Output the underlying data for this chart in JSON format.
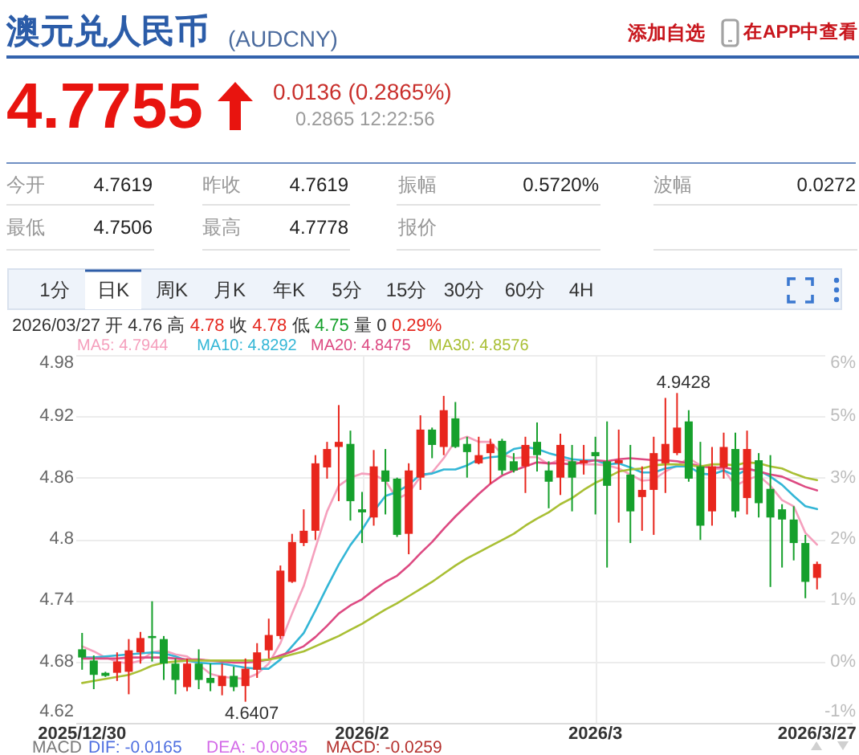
{
  "chart_data": {
    "type": "candlestick",
    "title": "澳元兑人民币",
    "subtitle": "(AUDCNY)",
    "annotations": [
      "添加自选",
      "在APP中查看",
      "4.7755",
      "0.0136 (0.2865%)",
      "0.2865 12:22:56",
      "今开",
      "4.7619",
      "昨收",
      "4.7619",
      "振幅",
      "0.5720%",
      "波幅",
      "0.0272",
      "最低",
      "4.7506",
      "最高",
      "4.7778",
      "报价",
      "1分",
      "日K",
      "周K",
      "月K",
      "年K",
      "5分",
      "15分",
      "30分",
      "60分",
      "4H",
      "2026/03/27 开 4.76 高",
      "4.78",
      "收",
      "4.78",
      "低",
      "4.75",
      "量 0",
      "0.29%",
      "MACD",
      "DIF: -0.0165",
      "DEA: -0.0035",
      "MACD: -0.0259",
      "4.9428",
      "4.6407"
    ],
    "categories": [
      "2025/12/30",
      null,
      null,
      null,
      null,
      null,
      null,
      null,
      null,
      null,
      null,
      null,
      null,
      null,
      null,
      null,
      null,
      null,
      null,
      null,
      null,
      null,
      null,
      null,
      "2026/2",
      null,
      null,
      null,
      null,
      null,
      null,
      null,
      null,
      null,
      null,
      null,
      null,
      null,
      null,
      null,
      null,
      null,
      null,
      null,
      "2026/3",
      null,
      null,
      null,
      null,
      null,
      null,
      null,
      null,
      null,
      null,
      null,
      null,
      null,
      null,
      null,
      null,
      null,
      null,
      "2026/3/27"
    ],
    "ohlc": [
      [
        4.692,
        4.708,
        4.672,
        4.684
      ],
      [
        4.681,
        4.686,
        4.653,
        4.667
      ],
      [
        4.669,
        4.67,
        4.665,
        4.666
      ],
      [
        4.669,
        4.689,
        4.661,
        4.68
      ],
      [
        4.67,
        4.702,
        4.648,
        4.691
      ],
      [
        4.689,
        4.709,
        4.678,
        4.703
      ],
      [
        4.705,
        4.739,
        4.68,
        4.703
      ],
      [
        4.702,
        4.705,
        4.662,
        4.678
      ],
      [
        4.678,
        4.683,
        4.648,
        4.662
      ],
      [
        4.655,
        4.683,
        4.651,
        4.678
      ],
      [
        4.678,
        4.692,
        4.653,
        4.662
      ],
      [
        4.664,
        4.678,
        4.651,
        4.659
      ],
      [
        4.656,
        4.678,
        4.647,
        4.666
      ],
      [
        4.666,
        4.675,
        4.651,
        4.655
      ],
      [
        4.656,
        4.683,
        4.6407,
        4.673
      ],
      [
        4.672,
        4.698,
        4.664,
        4.689
      ],
      [
        4.691,
        4.722,
        4.683,
        4.706
      ],
      [
        4.705,
        4.774,
        4.702,
        4.769
      ],
      [
        4.758,
        4.805,
        4.757,
        4.797
      ],
      [
        4.796,
        4.829,
        4.793,
        4.808
      ],
      [
        4.808,
        4.882,
        4.799,
        4.874
      ],
      [
        4.87,
        4.895,
        4.859,
        4.888
      ],
      [
        4.89,
        4.931,
        4.837,
        4.895
      ],
      [
        4.893,
        4.906,
        4.818,
        4.837
      ],
      [
        4.829,
        4.846,
        4.796,
        4.826
      ],
      [
        4.821,
        4.887,
        4.813,
        4.871
      ],
      [
        4.867,
        4.888,
        4.824,
        4.856
      ],
      [
        4.859,
        4.86,
        4.802,
        4.804
      ],
      [
        4.805,
        4.874,
        4.785,
        4.867
      ],
      [
        4.86,
        4.921,
        4.848,
        4.907
      ],
      [
        4.907,
        4.909,
        4.879,
        4.892
      ],
      [
        4.89,
        4.94,
        4.882,
        4.926
      ],
      [
        4.918,
        4.934,
        4.889,
        4.89
      ],
      [
        4.893,
        4.9,
        4.86,
        4.885
      ],
      [
        4.874,
        4.9,
        4.873,
        4.882
      ],
      [
        4.884,
        4.898,
        4.854,
        4.893
      ],
      [
        4.896,
        4.898,
        4.863,
        4.867
      ],
      [
        4.876,
        4.884,
        4.865,
        4.867
      ],
      [
        4.871,
        4.9,
        4.845,
        4.892
      ],
      [
        4.895,
        4.914,
        4.866,
        4.882
      ],
      [
        4.867,
        4.876,
        4.83,
        4.856
      ],
      [
        4.86,
        4.903,
        4.843,
        4.892
      ],
      [
        4.876,
        4.892,
        4.827,
        4.86
      ],
      [
        4.874,
        4.892,
        4.863,
        4.877
      ],
      [
        4.885,
        4.9,
        4.824,
        4.881
      ],
      [
        4.876,
        4.915,
        4.772,
        4.852
      ],
      [
        4.874,
        4.907,
        4.816,
        4.877
      ],
      [
        4.863,
        4.892,
        4.796,
        4.827
      ],
      [
        4.841,
        4.871,
        4.808,
        4.848
      ],
      [
        4.848,
        4.9,
        4.804,
        4.884
      ],
      [
        4.874,
        4.938,
        4.845,
        4.893
      ],
      [
        4.884,
        4.9428,
        4.882,
        4.909
      ],
      [
        4.915,
        4.926,
        4.856,
        4.859
      ],
      [
        4.871,
        4.895,
        4.799,
        4.813
      ],
      [
        4.827,
        4.89,
        4.813,
        4.871
      ],
      [
        4.87,
        4.904,
        4.859,
        4.89
      ],
      [
        4.888,
        4.904,
        4.821,
        4.827
      ],
      [
        4.84,
        4.906,
        4.824,
        4.888
      ],
      [
        4.877,
        4.884,
        4.821,
        4.835
      ],
      [
        4.849,
        4.882,
        4.753,
        4.821
      ],
      [
        4.829,
        4.834,
        4.772,
        4.819
      ],
      [
        4.819,
        4.832,
        4.779,
        4.796
      ],
      [
        4.796,
        4.804,
        4.742,
        4.758
      ],
      [
        4.7619,
        4.7778,
        4.7506,
        4.7755
      ]
    ],
    "colors": [
      "#16a02c",
      "#16a02c",
      "#16a02c",
      "#e8261d",
      "#e8261d",
      "#e8261d",
      "#16a02c",
      "#16a02c",
      "#16a02c",
      "#e8261d",
      "#16a02c",
      "#16a02c",
      "#e8261d",
      "#16a02c",
      "#e8261d",
      "#e8261d",
      "#e8261d",
      "#e8261d",
      "#e8261d",
      "#e8261d",
      "#e8261d",
      "#e8261d",
      "#e8261d",
      "#16a02c",
      "#16a02c",
      "#e8261d",
      "#16a02c",
      "#16a02c",
      "#e8261d",
      "#e8261d",
      "#16a02c",
      "#e8261d",
      "#16a02c",
      "#16a02c",
      "#e8261d",
      "#e8261d",
      "#16a02c",
      "#16a02c",
      "#e8261d",
      "#16a02c",
      "#16a02c",
      "#e8261d",
      "#16a02c",
      "#e8261d",
      "#16a02c",
      "#16a02c",
      "#e8261d",
      "#16a02c",
      "#e8261d",
      "#e8261d",
      "#e8261d",
      "#e8261d",
      "#16a02c",
      "#16a02c",
      "#e8261d",
      "#e8261d",
      "#16a02c",
      "#e8261d",
      "#16a02c",
      "#16a02c",
      "#16a02c",
      "#16a02c",
      "#16a02c",
      "#e8261d"
    ],
    "series": [
      {
        "name": "MA5: 4.7944",
        "type": "line",
        "color": "#f5a0bd",
        "values": [
          4.695,
          4.69,
          4.684,
          4.68,
          4.678,
          4.681,
          4.689,
          4.691,
          4.687,
          4.685,
          4.677,
          4.668,
          4.665,
          4.664,
          4.663,
          4.668,
          4.678,
          4.698,
          4.727,
          4.754,
          4.791,
          4.827,
          4.852,
          4.86,
          4.864,
          4.863,
          4.857,
          4.839,
          4.845,
          4.861,
          4.865,
          4.879,
          4.896,
          4.9,
          4.895,
          4.895,
          4.883,
          4.879,
          4.88,
          4.88,
          4.873,
          4.878,
          4.876,
          4.873,
          4.873,
          4.872,
          4.869,
          4.863,
          4.857,
          4.858,
          4.866,
          4.872,
          4.879,
          4.872,
          4.869,
          4.868,
          4.852,
          4.858,
          4.862,
          4.852,
          4.838,
          4.832,
          4.806,
          4.7944
        ]
      },
      {
        "name": "MA10: 4.8292",
        "type": "line",
        "color": "#33b6d6",
        "values": [
          4.684,
          4.684,
          4.685,
          4.686,
          4.687,
          4.688,
          4.689,
          4.688,
          4.685,
          4.681,
          4.679,
          4.678,
          4.678,
          4.676,
          4.674,
          4.673,
          4.673,
          4.682,
          4.695,
          4.708,
          4.73,
          4.753,
          4.775,
          4.794,
          4.809,
          4.827,
          4.842,
          4.846,
          4.853,
          4.863,
          4.864,
          4.868,
          4.868,
          4.872,
          4.878,
          4.88,
          4.881,
          4.888,
          4.89,
          4.888,
          4.884,
          4.881,
          4.878,
          4.877,
          4.877,
          4.873,
          4.874,
          4.87,
          4.865,
          4.865,
          4.869,
          4.871,
          4.871,
          4.864,
          4.863,
          4.867,
          4.862,
          4.868,
          4.867,
          4.861,
          4.853,
          4.842,
          4.832,
          4.8292
        ]
      },
      {
        "name": "MA20: 4.8475",
        "type": "line",
        "color": "#dd4a82",
        "values": [
          4.683,
          4.683,
          4.683,
          4.683,
          4.684,
          4.684,
          4.684,
          4.684,
          4.683,
          4.682,
          4.682,
          4.681,
          4.68,
          4.679,
          4.679,
          4.68,
          4.682,
          4.686,
          4.69,
          4.695,
          4.704,
          4.715,
          4.727,
          4.735,
          4.741,
          4.75,
          4.758,
          4.764,
          4.774,
          4.786,
          4.797,
          4.81,
          4.822,
          4.833,
          4.844,
          4.854,
          4.862,
          4.867,
          4.871,
          4.875,
          4.874,
          4.874,
          4.873,
          4.875,
          4.877,
          4.876,
          4.878,
          4.879,
          4.878,
          4.877,
          4.877,
          4.876,
          4.874,
          4.871,
          4.87,
          4.87,
          4.868,
          4.869,
          4.866,
          4.863,
          4.861,
          4.856,
          4.851,
          4.8475
        ]
      },
      {
        "name": "MA30: 4.8576",
        "type": "line",
        "color": "#a9bf34",
        "values": [
          4.659,
          4.661,
          4.663,
          4.665,
          4.667,
          4.671,
          4.676,
          4.679,
          4.68,
          4.681,
          4.681,
          4.681,
          4.681,
          4.681,
          4.681,
          4.681,
          4.682,
          4.684,
          4.687,
          4.69,
          4.695,
          4.7,
          4.705,
          4.711,
          4.717,
          4.724,
          4.731,
          4.737,
          4.744,
          4.751,
          4.758,
          4.766,
          4.774,
          4.781,
          4.787,
          4.793,
          4.799,
          4.805,
          4.813,
          4.82,
          4.826,
          4.834,
          4.84,
          4.848,
          4.855,
          4.86,
          4.866,
          4.868,
          4.869,
          4.872,
          4.873,
          4.873,
          4.872,
          4.871,
          4.873,
          4.873,
          4.872,
          4.875,
          4.874,
          4.871,
          4.869,
          4.864,
          4.86,
          4.8576
        ]
      }
    ],
    "ylim": [
      4.62,
      4.98
    ],
    "yticks": [
      4.62,
      4.68,
      4.74,
      4.8,
      4.86,
      4.92,
      4.98
    ],
    "y2lim": [
      -1.4,
      5.8
    ],
    "y2ticks": [
      {
        "value": -1.4,
        "label": "-1%"
      },
      {
        "value": -0.2,
        "label": "0%"
      },
      {
        "value": 1.0,
        "label": "1%"
      },
      {
        "value": 2.2,
        "label": "2%"
      },
      {
        "value": 3.4,
        "label": "3%"
      },
      {
        "value": 4.6,
        "label": "5%"
      },
      {
        "value": 5.8,
        "label": "6%"
      }
    ],
    "grid": true,
    "legend": "top"
  }
}
